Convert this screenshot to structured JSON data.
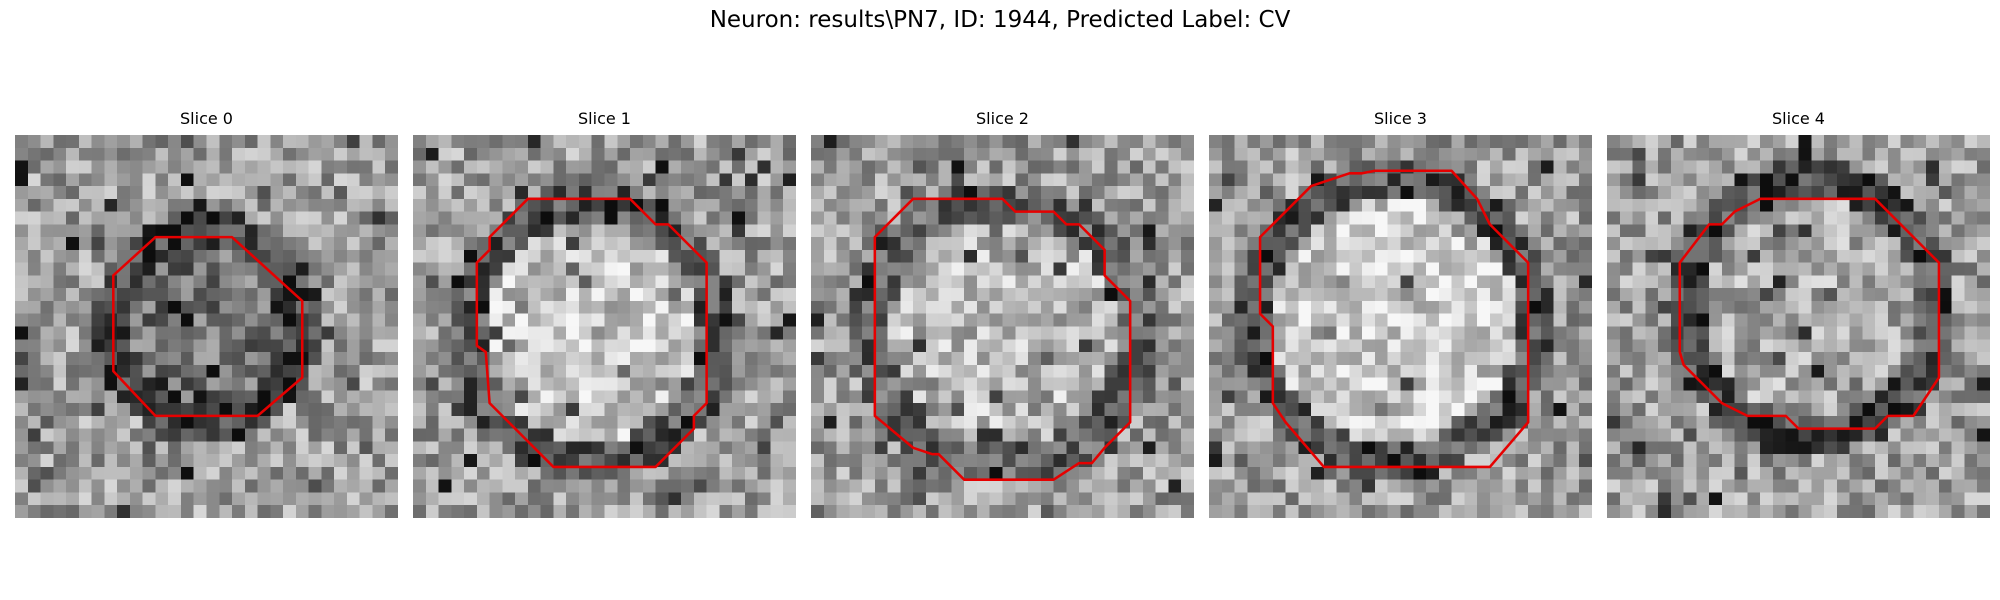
{
  "figure": {
    "title": "Neuron: results\\PN7, ID: 1944, Predicted Label: CV"
  },
  "contour_color": "#e60000",
  "slices": [
    {
      "label": "Slice 0"
    },
    {
      "label": "Slice 1"
    },
    {
      "label": "Slice 2"
    },
    {
      "label": "Slice 3"
    },
    {
      "label": "Slice 4"
    }
  ]
}
